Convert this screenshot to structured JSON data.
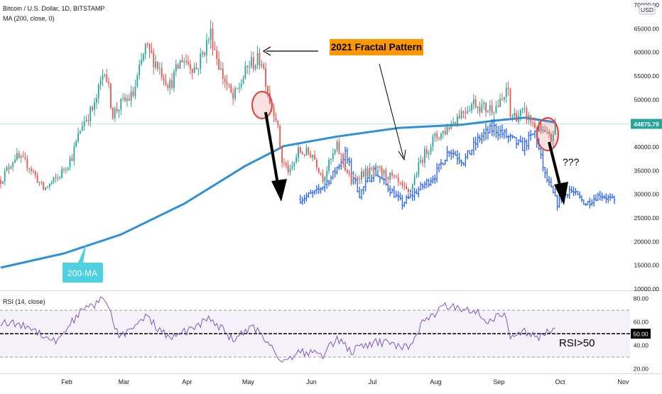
{
  "header": {
    "symbol_line": "Bitcoin / U.S. Dollar, 1D, BITSTAMP",
    "ma_line": "MA (200, close, 0)",
    "rsi_line": "RSI (14, close)",
    "currency": "USD"
  },
  "annotations": {
    "fractal_label": "2021 Fractal Pattern",
    "ma_label": "200-MA",
    "question": "???",
    "rsi_note": "RSI>50",
    "price_tag": "44875.79",
    "rsi_tag": "50.00"
  },
  "colors": {
    "up": "#26a69a",
    "down": "#ef5350",
    "projection": "#2962ff",
    "ma": "#2f8fd8",
    "rsi": "#7e57c2",
    "fractal_label_bg": "#ff9800",
    "ma_label_bg": "#4dd0e1",
    "circle": "#e53935"
  },
  "chart_data": [
    {
      "type": "candlestick",
      "title": "Bitcoin / U.S. Dollar, 1D, BITSTAMP",
      "x_ticks": [
        "Feb",
        "Mar",
        "Apr",
        "May",
        "Jun",
        "Jul",
        "Aug",
        "Sep",
        "Oct",
        "Nov"
      ],
      "y_ticks": [
        "70000.00",
        "65000.00",
        "60000.00",
        "55000.00",
        "50000.00",
        "45000.00",
        "40000.00",
        "35000.00",
        "30000.00",
        "25000.00",
        "20000.00",
        "15000.00",
        "10000.00"
      ],
      "ylim": [
        10000,
        70000
      ],
      "last_price": 44875.79,
      "price_path": [
        [
          "2021-01-01",
          33000
        ],
        [
          "2021-01-08",
          38000
        ],
        [
          "2021-01-15",
          36000
        ],
        [
          "2021-01-22",
          31000
        ],
        [
          "2021-01-29",
          33500
        ],
        [
          "2021-02-05",
          38000
        ],
        [
          "2021-02-10",
          45000
        ],
        [
          "2021-02-16",
          48500
        ],
        [
          "2021-02-21",
          57000
        ],
        [
          "2021-02-25",
          47000
        ],
        [
          "2021-03-01",
          49000
        ],
        [
          "2021-03-07",
          51000
        ],
        [
          "2021-03-13",
          61000
        ],
        [
          "2021-03-18",
          58000
        ],
        [
          "2021-03-25",
          53000
        ],
        [
          "2021-03-31",
          58800
        ],
        [
          "2021-04-07",
          56500
        ],
        [
          "2021-04-14",
          64000
        ],
        [
          "2021-04-19",
          56000
        ],
        [
          "2021-04-25",
          50000
        ],
        [
          "2021-05-03",
          57500
        ],
        [
          "2021-05-09",
          58500
        ],
        [
          "2021-05-13",
          50000
        ],
        [
          "2021-05-16",
          46500
        ],
        [
          "2021-05-19",
          37000
        ],
        [
          "2021-05-23",
          34500
        ],
        [
          "2021-05-27",
          39000
        ],
        [
          "2021-06-03",
          38500
        ],
        [
          "2021-06-08",
          33500
        ],
        [
          "2021-06-15",
          40000
        ],
        [
          "2021-06-22",
          32500
        ],
        [
          "2021-06-27",
          34500
        ],
        [
          "2021-07-05",
          35000
        ],
        [
          "2021-07-12",
          33500
        ],
        [
          "2021-07-20",
          30000
        ],
        [
          "2021-07-26",
          37000
        ],
        [
          "2021-08-01",
          41500
        ],
        [
          "2021-08-07",
          43500
        ],
        [
          "2021-08-14",
          47000
        ],
        [
          "2021-08-21",
          49500
        ],
        [
          "2021-08-27",
          48000
        ],
        [
          "2021-09-03",
          49000
        ],
        [
          "2021-09-07",
          52000
        ],
        [
          "2021-09-08",
          46500
        ],
        [
          "2021-09-15",
          47000
        ],
        [
          "2021-09-21",
          44000
        ],
        [
          "2021-09-25",
          42500
        ],
        [
          "2021-09-28",
          41500
        ],
        [
          "2021-09-30",
          44875.79
        ]
      ],
      "projection_path": [
        [
          "2021-05-28",
          29000
        ],
        [
          "2021-06-05",
          30500
        ],
        [
          "2021-06-12",
          33500
        ],
        [
          "2021-06-19",
          38500
        ],
        [
          "2021-06-26",
          30000
        ],
        [
          "2021-07-03",
          35000
        ],
        [
          "2021-07-10",
          31500
        ],
        [
          "2021-07-17",
          28000
        ],
        [
          "2021-07-25",
          31000
        ],
        [
          "2021-08-02",
          34000
        ],
        [
          "2021-08-09",
          39500
        ],
        [
          "2021-08-16",
          37000
        ],
        [
          "2021-08-24",
          42000
        ],
        [
          "2021-08-31",
          44000
        ],
        [
          "2021-09-07",
          42000
        ],
        [
          "2021-09-14",
          40000
        ],
        [
          "2021-09-20",
          43000
        ],
        [
          "2021-09-25",
          34000
        ],
        [
          "2021-10-01",
          28000
        ],
        [
          "2021-10-07",
          31000
        ],
        [
          "2021-10-15",
          28000
        ],
        [
          "2021-10-22",
          30000
        ],
        [
          "2021-10-29",
          28500
        ]
      ],
      "ma200_path": [
        [
          "2021-01-01",
          14500
        ],
        [
          "2021-02-01",
          17500
        ],
        [
          "2021-03-01",
          21500
        ],
        [
          "2021-04-01",
          28000
        ],
        [
          "2021-05-01",
          36000
        ],
        [
          "2021-05-20",
          40200
        ],
        [
          "2021-06-15",
          42200
        ],
        [
          "2021-07-15",
          44000
        ],
        [
          "2021-08-15",
          44700
        ],
        [
          "2021-09-01",
          45600
        ],
        [
          "2021-09-15",
          46200
        ],
        [
          "2021-09-30",
          45200
        ]
      ]
    },
    {
      "type": "line",
      "title": "RSI (14, close)",
      "y_ticks": [
        "80.00",
        "60.00",
        "40.00",
        "20.00"
      ],
      "ylim": [
        15,
        85
      ],
      "levels": [
        70,
        50,
        30
      ],
      "path": [
        [
          "2021-01-01",
          60
        ],
        [
          "2021-01-15",
          56
        ],
        [
          "2021-01-28",
          43
        ],
        [
          "2021-02-08",
          67
        ],
        [
          "2021-02-21",
          80
        ],
        [
          "2021-02-28",
          48
        ],
        [
          "2021-03-08",
          55
        ],
        [
          "2021-03-13",
          65
        ],
        [
          "2021-03-25",
          45
        ],
        [
          "2021-04-05",
          55
        ],
        [
          "2021-04-14",
          63
        ],
        [
          "2021-04-25",
          45
        ],
        [
          "2021-05-05",
          55
        ],
        [
          "2021-05-13",
          42
        ],
        [
          "2021-05-19",
          25
        ],
        [
          "2021-05-27",
          35
        ],
        [
          "2021-06-08",
          32
        ],
        [
          "2021-06-15",
          46
        ],
        [
          "2021-06-22",
          35
        ],
        [
          "2021-07-05",
          43
        ],
        [
          "2021-07-20",
          38
        ],
        [
          "2021-07-28",
          62
        ],
        [
          "2021-08-08",
          74
        ],
        [
          "2021-08-22",
          70
        ],
        [
          "2021-08-27",
          60
        ],
        [
          "2021-09-05",
          68
        ],
        [
          "2021-09-08",
          45
        ],
        [
          "2021-09-15",
          52
        ],
        [
          "2021-09-22",
          46
        ],
        [
          "2021-09-30",
          55
        ]
      ]
    }
  ]
}
